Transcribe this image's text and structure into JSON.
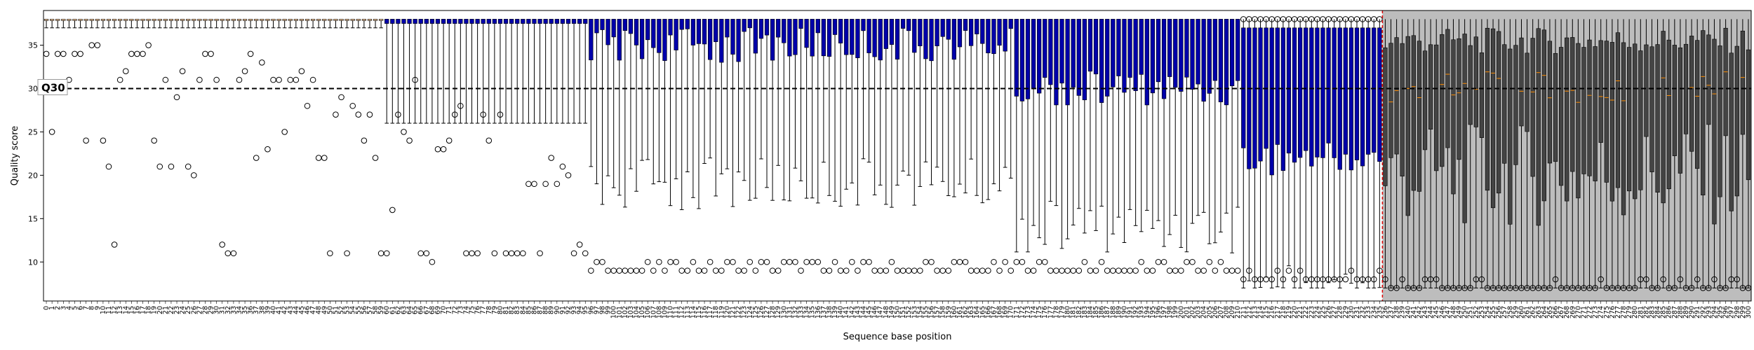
{
  "chart_data": {
    "type": "box",
    "xlabel": "Sequence base position",
    "ylabel": "Quality score",
    "ylim": [
      5.5,
      39
    ],
    "yticks": [
      10,
      15,
      20,
      25,
      30,
      35
    ],
    "x_start": 0,
    "x_end": 300,
    "threshold": {
      "value": 30,
      "label": "Q30"
    },
    "cutoff_position": 236,
    "grid": false,
    "colors": {
      "early_box": "#f2c79b",
      "mid_box": "#0000aa",
      "trimmed_box": "#444444",
      "trimmed_shade": "#bdbdbd",
      "median": "#ff8c00",
      "cutoff_line": "#dd0000",
      "threshold_line": "#000000"
    },
    "segments": [
      {
        "from": 0,
        "to": 59,
        "q1": 38,
        "q3": 38,
        "low": 37,
        "outlier": 11
      },
      {
        "from": 60,
        "to": 95,
        "q1": 37.5,
        "q3": 38,
        "low": 26,
        "outlier": 11
      },
      {
        "from": 96,
        "to": 170,
        "q1": 37,
        "q3": 38,
        "low": 22,
        "outlier": 9
      },
      {
        "from": 171,
        "to": 210,
        "q1": 32,
        "q3": 38,
        "low": 17,
        "outlier": 9
      },
      {
        "from": 211,
        "to": 235,
        "q1": 24,
        "q3": 37,
        "low": 10,
        "outlier": 8
      },
      {
        "from": 236,
        "to": 300,
        "q1": 20,
        "q3": 36,
        "low": 7,
        "outlier": 7
      }
    ],
    "early_outliers": [
      [
        0,
        34
      ],
      [
        1,
        25
      ],
      [
        2,
        34
      ],
      [
        3,
        34
      ],
      [
        4,
        31
      ],
      [
        5,
        34
      ],
      [
        6,
        34
      ],
      [
        7,
        24
      ],
      [
        8,
        35
      ],
      [
        9,
        35
      ],
      [
        10,
        24
      ],
      [
        11,
        21
      ],
      [
        12,
        12
      ],
      [
        13,
        31
      ],
      [
        14,
        32
      ],
      [
        15,
        34
      ],
      [
        16,
        34
      ],
      [
        17,
        34
      ],
      [
        18,
        35
      ],
      [
        19,
        24
      ],
      [
        20,
        21
      ],
      [
        21,
        31
      ],
      [
        22,
        21
      ],
      [
        23,
        29
      ],
      [
        24,
        32
      ],
      [
        25,
        21
      ],
      [
        26,
        20
      ],
      [
        27,
        31
      ],
      [
        28,
        34
      ],
      [
        29,
        34
      ],
      [
        30,
        31
      ],
      [
        31,
        12
      ],
      [
        32,
        11
      ],
      [
        33,
        11
      ],
      [
        34,
        31
      ],
      [
        35,
        32
      ],
      [
        36,
        34
      ],
      [
        37,
        22
      ],
      [
        38,
        33
      ],
      [
        39,
        23
      ],
      [
        40,
        31
      ],
      [
        41,
        31
      ],
      [
        42,
        25
      ],
      [
        43,
        31
      ],
      [
        44,
        31
      ],
      [
        45,
        32
      ],
      [
        46,
        28
      ],
      [
        47,
        31
      ],
      [
        48,
        22
      ],
      [
        49,
        22
      ],
      [
        50,
        11
      ],
      [
        51,
        27
      ],
      [
        52,
        29
      ],
      [
        53,
        11
      ],
      [
        54,
        28
      ],
      [
        55,
        27
      ],
      [
        56,
        24
      ],
      [
        57,
        27
      ],
      [
        58,
        22
      ],
      [
        59,
        11
      ],
      [
        60,
        11
      ],
      [
        61,
        16
      ],
      [
        62,
        27
      ],
      [
        63,
        25
      ],
      [
        64,
        24
      ],
      [
        65,
        31
      ],
      [
        66,
        11
      ],
      [
        67,
        11
      ],
      [
        68,
        10
      ],
      [
        69,
        23
      ],
      [
        70,
        23
      ],
      [
        71,
        24
      ],
      [
        72,
        27
      ],
      [
        73,
        28
      ],
      [
        74,
        11
      ],
      [
        75,
        11
      ],
      [
        76,
        11
      ],
      [
        77,
        27
      ],
      [
        78,
        24
      ],
      [
        79,
        11
      ],
      [
        80,
        27
      ],
      [
        81,
        11
      ],
      [
        82,
        11
      ],
      [
        83,
        11
      ],
      [
        84,
        11
      ],
      [
        85,
        19
      ],
      [
        86,
        19
      ],
      [
        87,
        11
      ],
      [
        88,
        19
      ],
      [
        89,
        22
      ],
      [
        90,
        19
      ],
      [
        91,
        21
      ],
      [
        92,
        20
      ]
    ]
  }
}
